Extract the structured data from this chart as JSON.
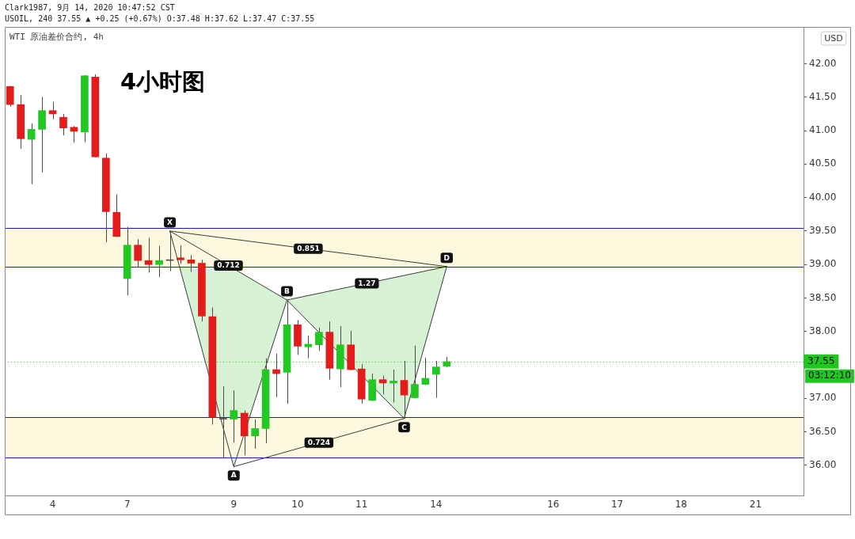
{
  "chart_data": {
    "type": "candlestick",
    "title": "4小时图",
    "subtitle": "WTI 原油差价合约, 4h",
    "ylabel": "USD",
    "categories": [
      null,
      null,
      null,
      null,
      "4",
      null,
      null,
      null,
      null,
      null,
      null,
      "7",
      null,
      null,
      null,
      null,
      null,
      null,
      null,
      null,
      null,
      "9",
      null,
      null,
      null,
      null,
      null,
      "10",
      null,
      null,
      null,
      null,
      null,
      "11",
      null,
      null,
      null,
      null,
      null,
      null,
      "14",
      null,
      null,
      null,
      null,
      null,
      null,
      null,
      null,
      null,
      null,
      "16",
      null,
      null,
      null,
      null,
      null,
      "17",
      null,
      null,
      null,
      null,
      null,
      "18",
      null,
      null,
      null,
      null,
      null,
      null,
      "21",
      null,
      null,
      null,
      null
    ],
    "ohlc": [
      [
        41.66,
        41.67,
        41.36,
        41.39
      ],
      [
        41.39,
        41.53,
        40.73,
        40.88
      ],
      [
        40.87,
        41.11,
        40.2,
        41.02
      ],
      [
        41.02,
        41.5,
        40.38,
        41.3
      ],
      [
        41.3,
        41.43,
        41.17,
        41.25
      ],
      [
        41.2,
        41.25,
        40.93,
        41.04
      ],
      [
        41.05,
        41.07,
        40.82,
        40.99
      ],
      [
        40.98,
        41.83,
        40.83,
        41.82
      ],
      [
        41.8,
        41.84,
        40.6,
        40.61
      ],
      [
        40.59,
        40.66,
        39.33,
        39.79
      ],
      [
        39.78,
        40.05,
        39.41,
        39.42
      ],
      [
        38.79,
        39.56,
        38.54,
        39.29
      ],
      [
        39.29,
        39.38,
        38.96,
        39.06
      ],
      [
        39.06,
        39.4,
        38.88,
        39.0
      ],
      [
        39.0,
        39.28,
        38.81,
        39.06
      ],
      [
        39.06,
        39.5,
        38.9,
        39.06
      ],
      [
        39.1,
        39.29,
        39.01,
        39.07
      ],
      [
        39.07,
        39.14,
        38.89,
        39.02
      ],
      [
        39.02,
        39.07,
        38.15,
        38.23
      ],
      [
        38.22,
        38.36,
        36.61,
        36.72
      ],
      [
        36.69,
        37.18,
        36.11,
        36.69
      ],
      [
        36.69,
        37.12,
        36.34,
        36.82
      ],
      [
        36.78,
        36.82,
        36.15,
        36.44
      ],
      [
        36.44,
        36.69,
        36.25,
        36.55
      ],
      [
        36.55,
        37.6,
        36.33,
        37.43
      ],
      [
        37.43,
        37.67,
        37.02,
        37.37
      ],
      [
        37.39,
        38.47,
        36.92,
        38.1
      ],
      [
        38.1,
        38.17,
        37.65,
        37.78
      ],
      [
        37.77,
        37.94,
        37.6,
        37.81
      ],
      [
        37.8,
        38.06,
        37.71,
        37.99
      ],
      [
        37.99,
        38.15,
        37.28,
        37.45
      ],
      [
        37.44,
        38.08,
        37.17,
        37.8
      ],
      [
        37.8,
        38.01,
        37.42,
        37.43
      ],
      [
        37.44,
        37.51,
        36.92,
        36.99
      ],
      [
        36.97,
        37.37,
        36.96,
        37.28
      ],
      [
        37.28,
        37.34,
        37.06,
        37.23
      ],
      [
        37.23,
        37.43,
        36.94,
        37.26
      ],
      [
        37.27,
        37.56,
        36.7,
        37.05
      ],
      [
        37.01,
        37.79,
        37.0,
        37.21
      ],
      [
        37.21,
        37.61,
        37.2,
        37.3
      ],
      [
        37.36,
        37.56,
        37.01,
        37.47
      ],
      [
        37.48,
        37.62,
        37.47,
        37.55
      ],
      null,
      null,
      null,
      null,
      null,
      null,
      null,
      null,
      null,
      null,
      null,
      null,
      null,
      null,
      null,
      null,
      null,
      null,
      null,
      null,
      null,
      null,
      null,
      null,
      null,
      null,
      null,
      null,
      null,
      null,
      null,
      null,
      null
    ],
    "colors": [
      "#e31b1b",
      "#e31b1b",
      "#22c722",
      "#22c722",
      "#e31b1b",
      "#e31b1b",
      "#e31b1b",
      "#22c722",
      "#e31b1b",
      "#e31b1b",
      "#e31b1b",
      "#22c722",
      "#e31b1b",
      "#e31b1b",
      "#22c722",
      "#4d4d4d",
      "#e31b1b",
      "#e31b1b",
      "#e31b1b",
      "#e31b1b",
      "#4d4d4d",
      "#22c722",
      "#e31b1b",
      "#22c722",
      "#22c722",
      "#e31b1b",
      "#22c722",
      "#e31b1b",
      "#22c722",
      "#22c722",
      "#e31b1b",
      "#22c722",
      "#e31b1b",
      "#e31b1b",
      "#22c722",
      "#e31b1b",
      "#22c722",
      "#e31b1b",
      "#22c722",
      "#22c722",
      "#22c722",
      "#22c722",
      null,
      null,
      null,
      null,
      null,
      null,
      null,
      null,
      null,
      null,
      null,
      null,
      null,
      null,
      null,
      null,
      null,
      null,
      null,
      null,
      null,
      null,
      null,
      null,
      null,
      null,
      null,
      null,
      null,
      null,
      null,
      null,
      null
    ],
    "series": [
      {
        "type": "line",
        "color": "#3a3a3a",
        "values": [
          null,
          null,
          null,
          null,
          null,
          null,
          null,
          null,
          null,
          null,
          null,
          null,
          null,
          null,
          null,
          39.5,
          null,
          null,
          null,
          null,
          null,
          35.98,
          null,
          null,
          null,
          null,
          38.47,
          null,
          null,
          null,
          null,
          null,
          null,
          null,
          null,
          null,
          null,
          36.7,
          null,
          null,
          null,
          38.97,
          null,
          null,
          null,
          null,
          null,
          null,
          null,
          null,
          null,
          null,
          null,
          null,
          null,
          null,
          null,
          null,
          null,
          null,
          null,
          null,
          null,
          null,
          null,
          null,
          null,
          null,
          null,
          null,
          null,
          null,
          null,
          null,
          null
        ],
        "value_labels": [
          null,
          null,
          null,
          null,
          null,
          null,
          null,
          null,
          null,
          null,
          null,
          null,
          null,
          null,
          null,
          "X",
          null,
          null,
          null,
          null,
          null,
          "A",
          null,
          null,
          null,
          null,
          "B",
          null,
          null,
          null,
          null,
          null,
          null,
          null,
          null,
          null,
          null,
          "C",
          null,
          null,
          null,
          "D",
          null,
          null,
          null,
          null,
          null,
          null,
          null,
          null,
          null,
          null,
          null,
          null,
          null,
          null,
          null,
          null,
          null,
          null,
          null,
          null,
          null,
          null,
          null,
          null,
          null,
          null,
          null,
          null,
          null,
          null,
          null,
          null,
          null
        ]
      },
      {
        "type": "line",
        "name": "0.712",
        "color": "#3a3a3a",
        "values": [
          null,
          null,
          null,
          null,
          null,
          null,
          null,
          null,
          null,
          null,
          null,
          null,
          null,
          null,
          null,
          39.5,
          null,
          null,
          null,
          null,
          null,
          null,
          null,
          null,
          null,
          null,
          38.47,
          null,
          null,
          null,
          null,
          null,
          null,
          null,
          null,
          null,
          null,
          null,
          null,
          null,
          null,
          null,
          null,
          null,
          null,
          null,
          null,
          null,
          null,
          null,
          null,
          null,
          null,
          null,
          null,
          null,
          null,
          null,
          null,
          null,
          null,
          null,
          null,
          null,
          null,
          null,
          null,
          null,
          null,
          null,
          null,
          null,
          null,
          null,
          null
        ]
      },
      {
        "type": "line",
        "name": "0.851",
        "color": "#3a3a3a",
        "values": [
          null,
          null,
          null,
          null,
          null,
          null,
          null,
          null,
          null,
          null,
          null,
          null,
          null,
          null,
          null,
          39.5,
          null,
          null,
          null,
          null,
          null,
          null,
          null,
          null,
          null,
          null,
          null,
          null,
          null,
          null,
          null,
          null,
          null,
          null,
          null,
          null,
          null,
          null,
          null,
          null,
          null,
          38.97,
          null,
          null,
          null,
          null,
          null,
          null,
          null,
          null,
          null,
          null,
          null,
          null,
          null,
          null,
          null,
          null,
          null,
          null,
          null,
          null,
          null,
          null,
          null,
          null,
          null,
          null,
          null,
          null,
          null,
          null,
          null,
          null,
          null
        ]
      },
      {
        "type": "line",
        "name": "1.27",
        "color": "#3a3a3a",
        "values": [
          null,
          null,
          null,
          null,
          null,
          null,
          null,
          null,
          null,
          null,
          null,
          null,
          null,
          null,
          null,
          null,
          null,
          null,
          null,
          null,
          null,
          null,
          null,
          null,
          null,
          null,
          38.47,
          null,
          null,
          null,
          null,
          null,
          null,
          null,
          null,
          null,
          null,
          null,
          null,
          null,
          null,
          38.97,
          null,
          null,
          null,
          null,
          null,
          null,
          null,
          null,
          null,
          null,
          null,
          null,
          null,
          null,
          null,
          null,
          null,
          null,
          null,
          null,
          null,
          null,
          null,
          null,
          null,
          null,
          null,
          null,
          null,
          null,
          null,
          null,
          null
        ]
      },
      {
        "type": "line",
        "name": "0.724",
        "color": "#3a3a3a",
        "values": [
          null,
          null,
          null,
          null,
          null,
          null,
          null,
          null,
          null,
          null,
          null,
          null,
          null,
          null,
          null,
          null,
          null,
          null,
          null,
          null,
          null,
          35.98,
          null,
          null,
          null,
          null,
          null,
          null,
          null,
          null,
          null,
          null,
          null,
          null,
          null,
          null,
          null,
          36.7,
          null,
          null,
          null,
          null,
          null,
          null,
          null,
          null,
          null,
          null,
          null,
          null,
          null,
          null,
          null,
          null,
          null,
          null,
          null,
          null,
          null,
          null,
          null,
          null,
          null,
          null,
          null,
          null,
          null,
          null,
          null,
          null,
          null,
          null,
          null,
          null,
          null
        ]
      }
    ],
    "marker": "none",
    "ylim": [
      35.55,
      42.55
    ],
    "yticks": [
      {
        "value": 36,
        "label": "36.00"
      },
      {
        "value": 36.5,
        "label": "36.50"
      },
      {
        "value": 37,
        "label": "37.00"
      },
      {
        "value": 38,
        "label": "38.00"
      },
      {
        "value": 38.5,
        "label": "38.50"
      },
      {
        "value": 39,
        "label": "39.00"
      },
      {
        "value": 39.5,
        "label": "39.50"
      },
      {
        "value": 40,
        "label": "40.00"
      },
      {
        "value": 40.5,
        "label": "40.50"
      },
      {
        "value": 41,
        "label": "41.00"
      },
      {
        "value": 41.5,
        "label": "41.50"
      },
      {
        "value": 42,
        "label": "42.00"
      }
    ],
    "bands": [
      {
        "axis": "y",
        "from": 38.97,
        "to": 39.55,
        "color": "#fbf8de"
      },
      {
        "axis": "y",
        "from": 36.12,
        "to": 36.72,
        "color": "#fbf8de"
      }
    ],
    "ref_lines": [
      {
        "axis": "y",
        "value": 37.55,
        "label": "37.55",
        "color": "#1fc81f",
        "line_style": "dotted"
      },
      {
        "axis": "y",
        "value": 39.55,
        "color": "#1a1acd"
      },
      {
        "axis": "y",
        "value": 38.97,
        "color": "#1a1acd"
      },
      {
        "axis": "y",
        "value": 36.72,
        "color": "#1a1acd"
      },
      {
        "axis": "y",
        "value": 36.12,
        "color": "#1a1acd"
      }
    ],
    "annotations": [
      "Clark1987, 9月 14, 2020 10:47:52 CST",
      "USOIL, 240 37.55 ▲ +0.25 (+0.67%) O:37.48 H:37.62 L:37.47 C:37.55",
      "03:12:10"
    ]
  }
}
